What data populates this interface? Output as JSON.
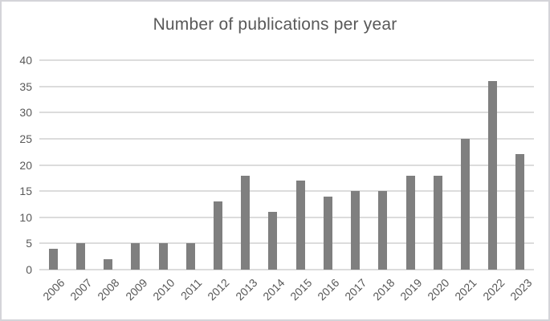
{
  "figure": {
    "background_color": "#ffffff",
    "border_color": "#d4d4d9"
  },
  "chart_data": {
    "type": "bar",
    "title": "Number of publications per year",
    "categories": [
      "2006",
      "2007",
      "2008",
      "2009",
      "2010",
      "2011",
      "2012",
      "2013",
      "2014",
      "2015",
      "2016",
      "2017",
      "2018",
      "2019",
      "2020",
      "2021",
      "2022",
      "2023"
    ],
    "values": [
      4,
      5,
      2,
      5,
      5,
      5,
      13,
      18,
      11,
      17,
      14,
      15,
      15,
      18,
      18,
      25,
      36,
      22
    ],
    "xlabel": "",
    "ylabel": "",
    "ylim": [
      0,
      40
    ],
    "yticks": [
      0,
      5,
      10,
      15,
      20,
      25,
      30,
      35,
      40
    ],
    "grid": true,
    "legend": "none",
    "x_label_rotation_deg": -45,
    "bar_color": "#7f7f7f",
    "gridline_color": "#dcdcdc",
    "text_color": "#595959"
  }
}
